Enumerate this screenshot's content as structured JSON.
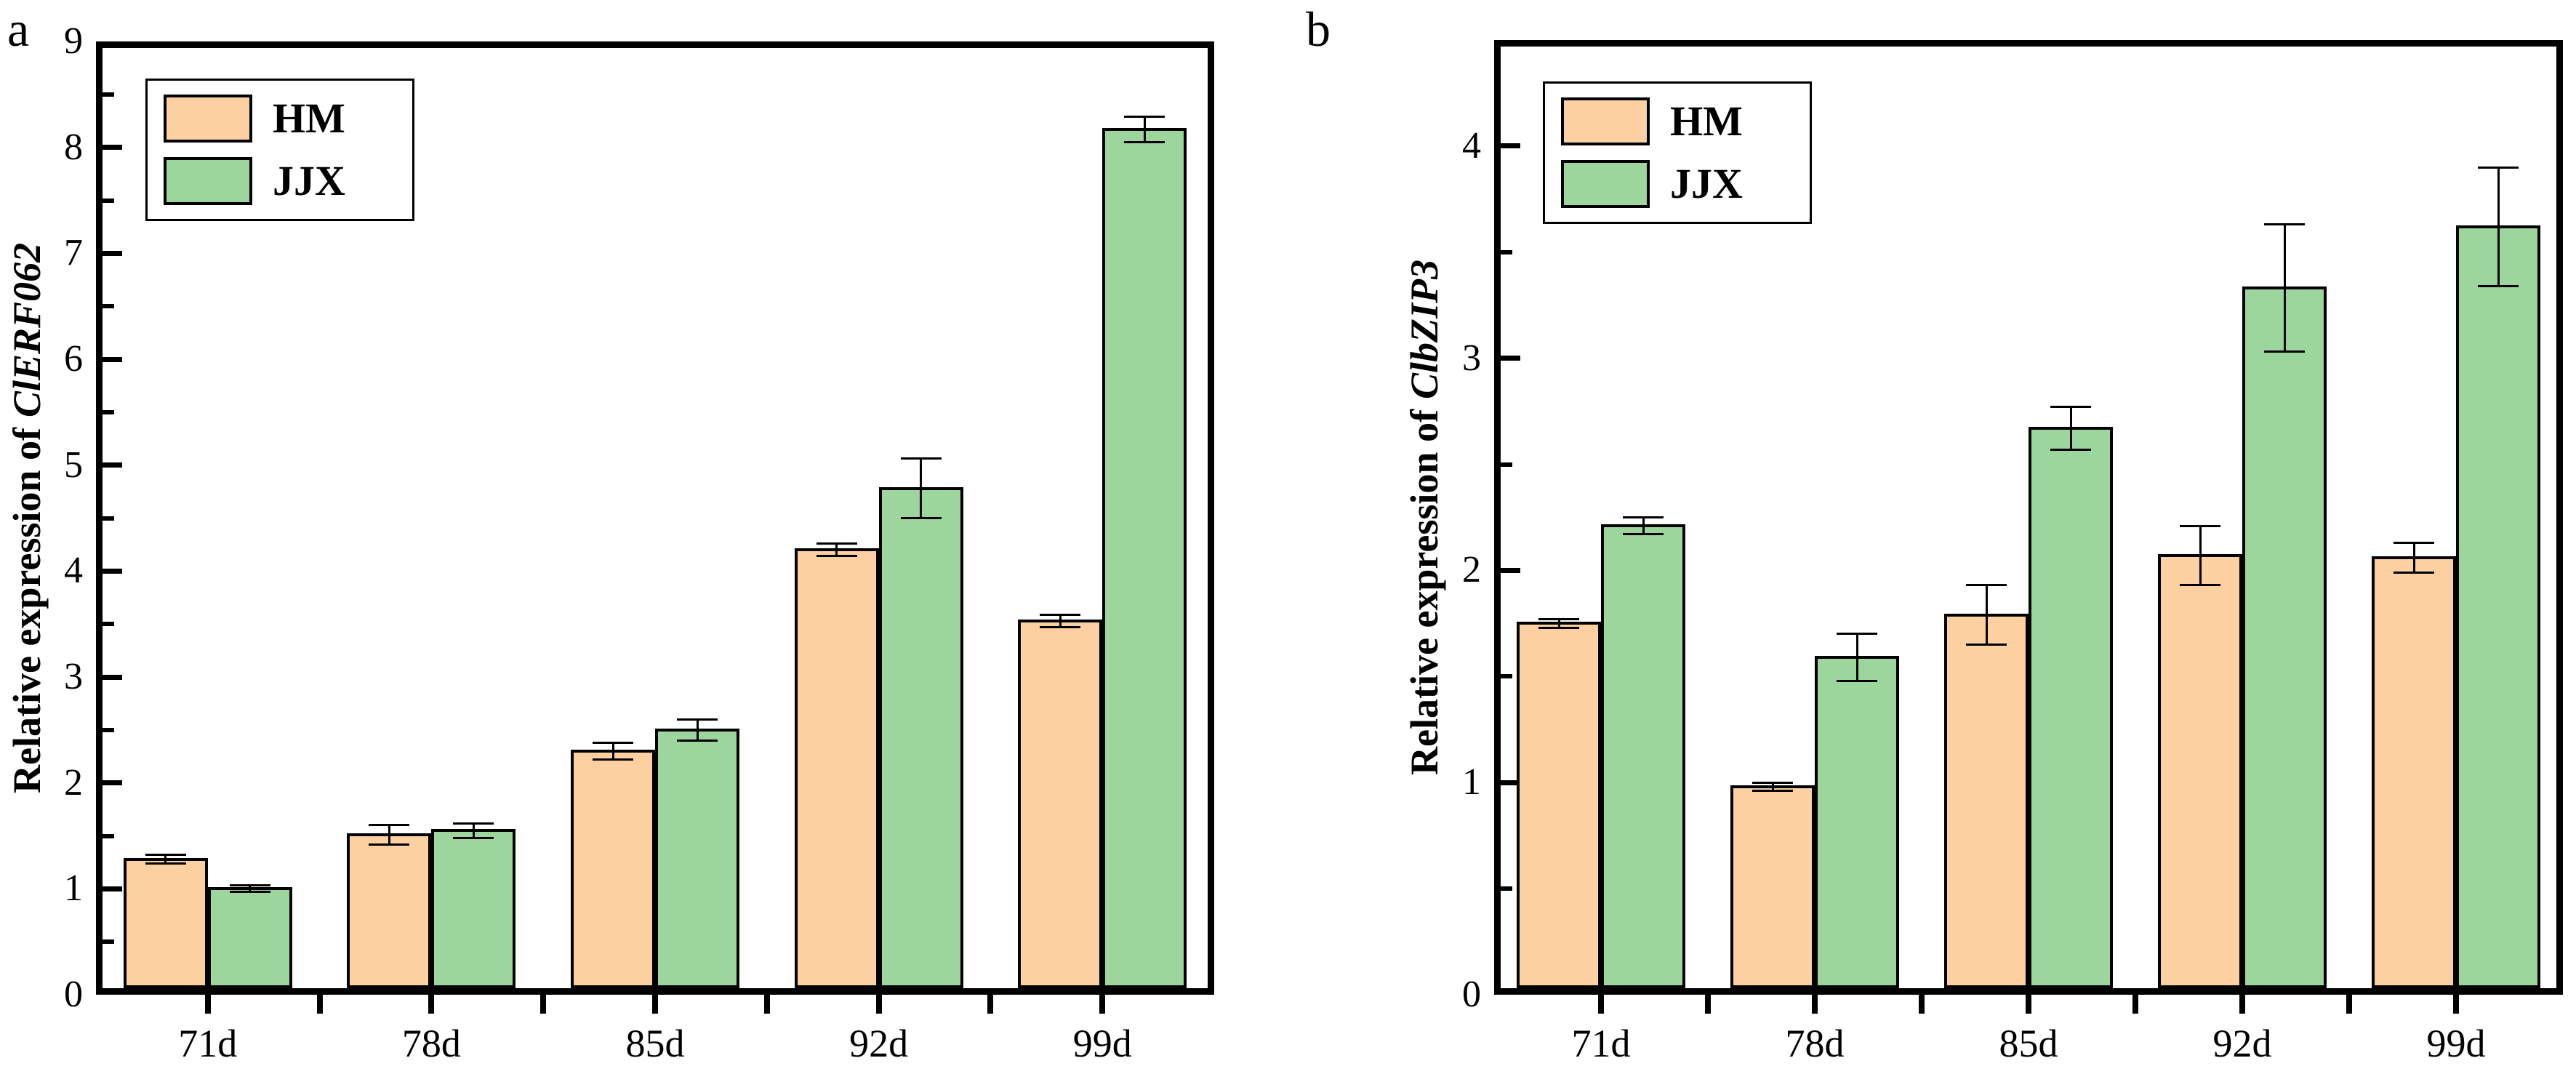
{
  "figure": {
    "background": "#ffffff",
    "bar_fill_hm": "#FCD0A0",
    "bar_fill_jjx": "#9DD69D",
    "axis_color": "#000000"
  },
  "chart_data": [
    {
      "type": "bar",
      "panel_label": "a",
      "title": "",
      "xlabel": "",
      "ylabel": "Relative expression of ClERF062",
      "ylabel_prefix": "Relative expression of ",
      "ylabel_gene": "ClERF062",
      "categories": [
        "71d",
        "78d",
        "85d",
        "92d",
        "99d"
      ],
      "series": [
        {
          "name": "HM",
          "color": "#FCD0A0",
          "values": [
            1.28,
            1.51,
            2.3,
            4.2,
            3.53
          ],
          "errors": [
            0.04,
            0.09,
            0.08,
            0.06,
            0.06
          ]
        },
        {
          "name": "JJX",
          "color": "#9DD69D",
          "values": [
            1.0,
            1.55,
            2.5,
            4.78,
            8.17
          ],
          "errors": [
            0.03,
            0.07,
            0.1,
            0.28,
            0.12
          ]
        }
      ],
      "ylim": [
        0,
        9
      ],
      "yticks": [
        0,
        1,
        2,
        3,
        4,
        5,
        6,
        7,
        8,
        9
      ],
      "minor_step": 0.5,
      "grid": false,
      "legend_position": "top-left",
      "error_bars": true
    },
    {
      "type": "bar",
      "panel_label": "b",
      "title": "",
      "xlabel": "",
      "ylabel": "Relative expression of ClbZIP3",
      "ylabel_prefix": "Relative expression of ",
      "ylabel_gene": "ClbZIP3",
      "categories": [
        "71d",
        "78d",
        "85d",
        "92d",
        "99d"
      ],
      "series": [
        {
          "name": "HM",
          "color": "#FCD0A0",
          "values": [
            1.75,
            0.98,
            1.79,
            2.07,
            2.06
          ],
          "errors": [
            0.02,
            0.02,
            0.14,
            0.14,
            0.07
          ]
        },
        {
          "name": "JJX",
          "color": "#9DD69D",
          "values": [
            2.21,
            1.59,
            2.67,
            3.33,
            3.62
          ],
          "errors": [
            0.04,
            0.11,
            0.1,
            0.3,
            0.28
          ]
        }
      ],
      "ylim": [
        0,
        4.5
      ],
      "yticks": [
        0,
        1,
        2,
        3,
        4
      ],
      "minor_step": 0.5,
      "grid": false,
      "legend_position": "top-left",
      "error_bars": true
    }
  ]
}
